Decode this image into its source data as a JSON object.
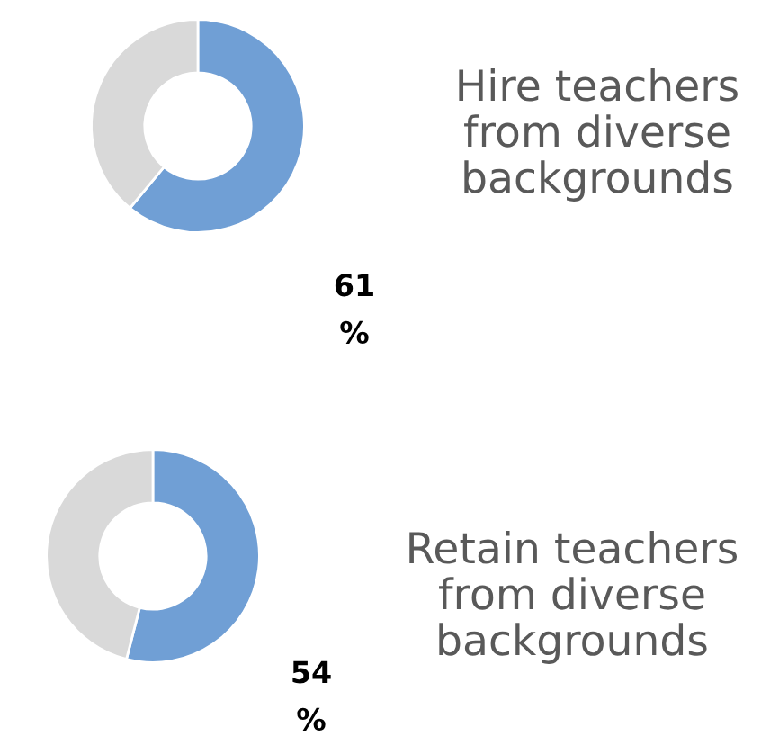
{
  "chart_data": [
    {
      "type": "donut",
      "title": "Hire teachers from diverse backgrounds",
      "categories": [
        null,
        null
      ],
      "values": [
        61,
        39
      ],
      "colors": [
        "#709fd5",
        "#d9d9d9"
      ],
      "value_labels": [
        "61 %",
        null
      ]
    },
    {
      "type": "donut",
      "title": "Retain teachers from diverse backgrounds",
      "categories": [
        null,
        null
      ],
      "values": [
        54,
        46
      ],
      "colors": [
        "#709fd5",
        "#d9d9d9"
      ],
      "value_labels": [
        "54 %",
        null
      ]
    }
  ]
}
